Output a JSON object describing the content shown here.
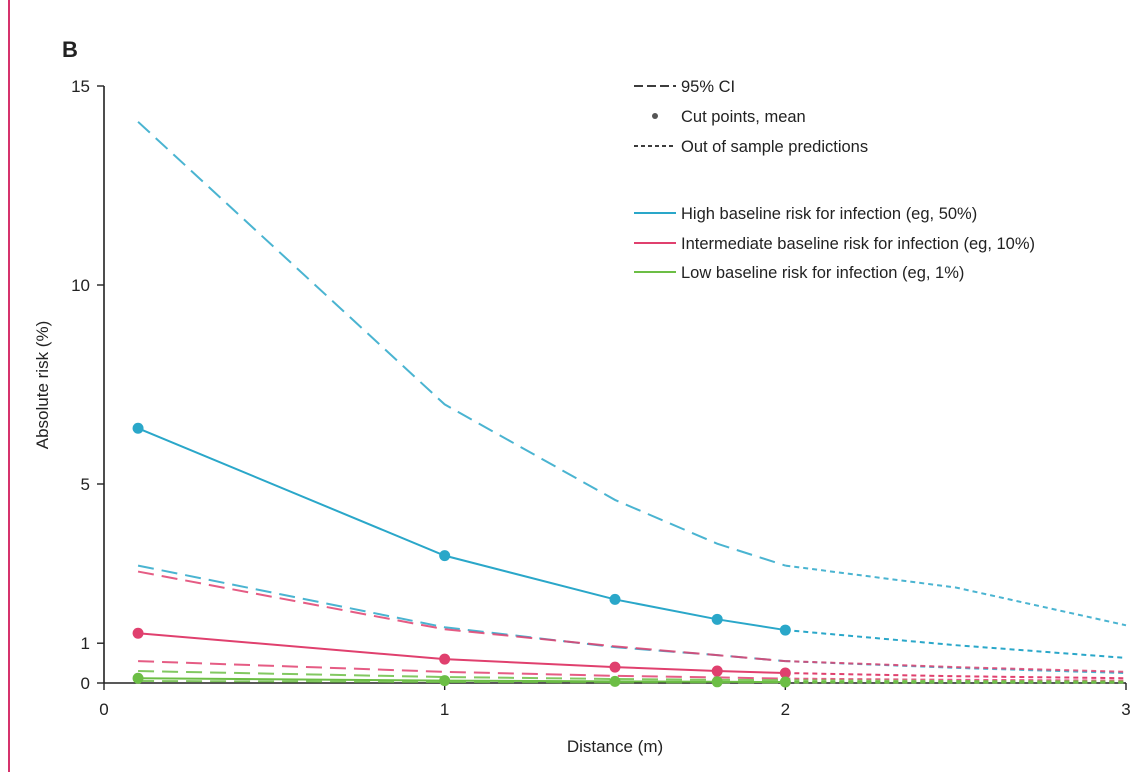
{
  "chart_data": {
    "type": "line",
    "panel_label": "B",
    "xlabel": "Distance (m)",
    "ylabel": "Absolute risk (%)",
    "xlim": [
      0,
      3
    ],
    "ylim": [
      0,
      15
    ],
    "x_ticks": [
      "0",
      "1",
      "2",
      "3"
    ],
    "y_ticks": [
      "0",
      "1",
      "5",
      "10",
      "15"
    ],
    "legend_position": "top-right",
    "legend_styles": [
      {
        "label": "95% CI",
        "marker": "long-dash"
      },
      {
        "label": "Cut points, mean",
        "marker": "dot"
      },
      {
        "label": "Out of sample predictions",
        "marker": "short-dash"
      }
    ],
    "series": [
      {
        "name": "High baseline risk for infection (eg, 50%)",
        "color": "#2aa7c9",
        "mean_x": [
          0.1,
          1.0,
          1.5,
          1.8,
          2.0
        ],
        "mean_y": [
          6.4,
          3.2,
          2.1,
          1.6,
          1.33
        ],
        "oos_mean_x": [
          2.0,
          2.5,
          3.0
        ],
        "oos_mean_y": [
          1.33,
          0.95,
          0.63
        ],
        "ci_upper_x": [
          0.1,
          1.0,
          1.5,
          1.8,
          2.0
        ],
        "ci_upper_y": [
          14.1,
          7.0,
          4.6,
          3.5,
          2.95
        ],
        "oos_ci_upper_x": [
          2.0,
          2.5,
          3.0
        ],
        "oos_ci_upper_y": [
          2.95,
          2.4,
          1.45
        ],
        "ci_lower_x": [
          0.1,
          1.0,
          1.5,
          1.8,
          2.0
        ],
        "ci_lower_y": [
          2.95,
          1.4,
          0.9,
          0.7,
          0.55
        ],
        "oos_ci_lower_x": [
          2.0,
          2.5,
          3.0
        ],
        "oos_ci_lower_y": [
          0.55,
          0.38,
          0.25
        ]
      },
      {
        "name": "Intermediate baseline risk for infection (eg, 10%)",
        "color": "#e0406e",
        "mean_x": [
          0.1,
          1.0,
          1.5,
          1.8,
          2.0
        ],
        "mean_y": [
          1.25,
          0.6,
          0.4,
          0.3,
          0.25
        ],
        "oos_mean_x": [
          2.0,
          2.5,
          3.0
        ],
        "oos_mean_y": [
          0.25,
          0.17,
          0.12
        ],
        "ci_upper_x": [
          0.1,
          1.0,
          1.5,
          1.8,
          2.0
        ],
        "ci_upper_y": [
          2.8,
          1.35,
          0.92,
          0.7,
          0.55
        ],
        "oos_ci_upper_x": [
          2.0,
          2.5,
          3.0
        ],
        "oos_ci_upper_y": [
          0.55,
          0.4,
          0.28
        ],
        "ci_lower_x": [
          0.1,
          1.0,
          1.5,
          1.8,
          2.0
        ],
        "ci_lower_y": [
          0.55,
          0.28,
          0.18,
          0.14,
          0.11
        ],
        "oos_ci_lower_x": [
          2.0,
          2.5,
          3.0
        ],
        "oos_ci_lower_y": [
          0.11,
          0.08,
          0.06
        ]
      },
      {
        "name": "Low baseline risk for infection (eg, 1%)",
        "color": "#6cbe45",
        "mean_x": [
          0.1,
          1.0,
          1.5,
          1.8,
          2.0
        ],
        "mean_y": [
          0.12,
          0.06,
          0.04,
          0.03,
          0.025
        ],
        "oos_mean_x": [
          2.0,
          2.5,
          3.0
        ],
        "oos_mean_y": [
          0.025,
          0.02,
          0.015
        ],
        "ci_upper_x": [
          0.1,
          1.0,
          1.5,
          1.8,
          2.0
        ],
        "ci_upper_y": [
          0.3,
          0.15,
          0.1,
          0.08,
          0.07
        ],
        "oos_ci_upper_x": [
          2.0,
          2.5,
          3.0
        ],
        "oos_ci_upper_y": [
          0.07,
          0.05,
          0.04
        ],
        "ci_lower_x": [
          0.1,
          1.0,
          1.5,
          1.8,
          2.0
        ],
        "ci_lower_y": [
          0.05,
          0.025,
          0.018,
          0.014,
          0.012
        ],
        "oos_ci_lower_x": [
          2.0,
          2.5,
          3.0
        ],
        "oos_ci_lower_y": [
          0.012,
          0.01,
          0.008
        ]
      }
    ],
    "accent_bar_color": "#d6336c"
  }
}
